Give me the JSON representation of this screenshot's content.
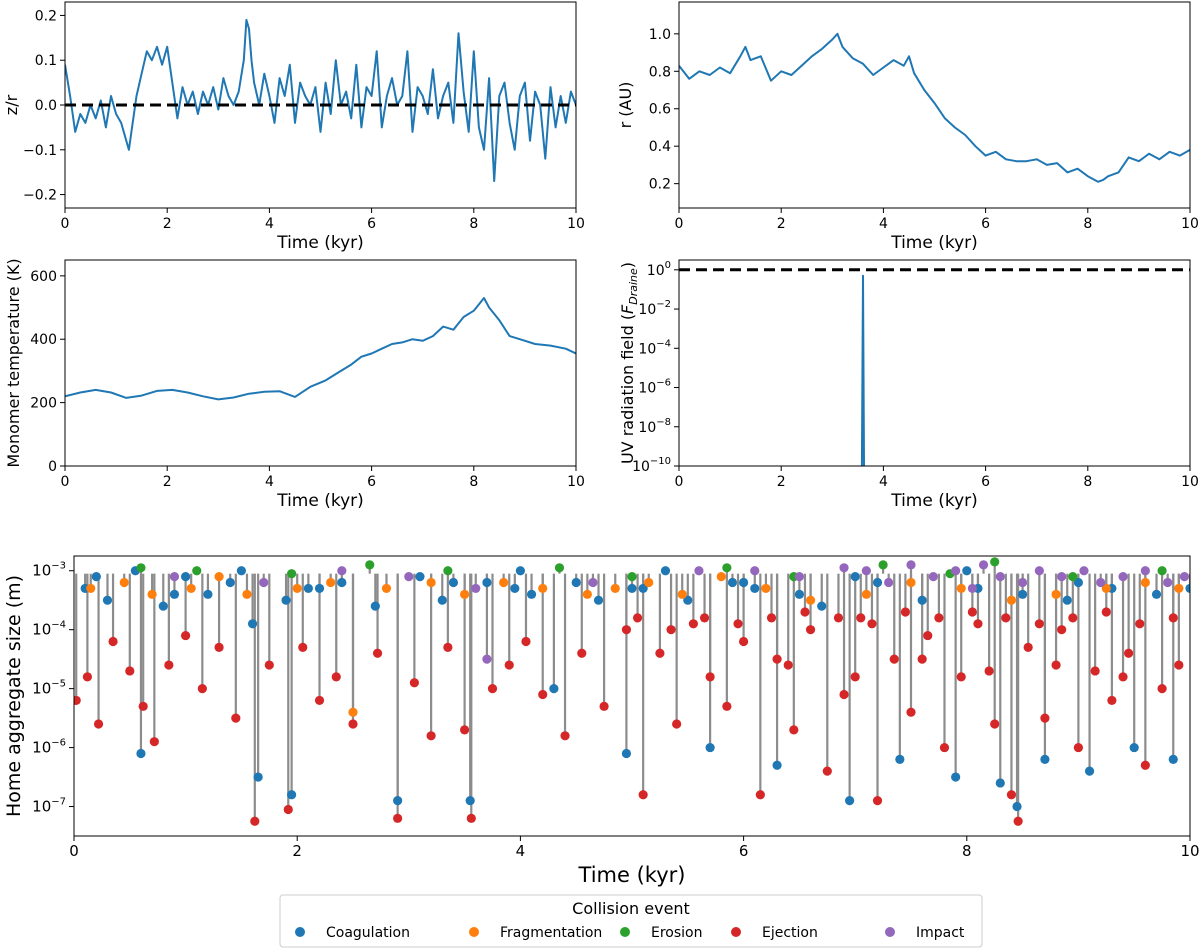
{
  "colors": {
    "line": "#1f77b4",
    "dashed": "#000000",
    "stem": "#8c8c8c",
    "Coagulation": "#1f77b4",
    "Fragmentation": "#ff7f0e",
    "Erosion": "#2ca02c",
    "Ejection": "#d62728",
    "Impact": "#9467bd"
  },
  "chart_data": [
    {
      "id": "zr",
      "type": "line",
      "title": "",
      "xlabel": "Time (kyr)",
      "ylabel": "z/r",
      "xlim": [
        0,
        10
      ],
      "ylim": [
        -0.23,
        0.23
      ],
      "xticks": [
        0,
        2,
        4,
        6,
        8,
        10
      ],
      "yticks": [
        -0.2,
        -0.1,
        0.0,
        0.1,
        0.2
      ],
      "ytick_labels": [
        "−0.2",
        "−0.1",
        "0.0",
        "0.1",
        "0.2"
      ],
      "hline": 0.0,
      "x": [
        0,
        0.1,
        0.2,
        0.3,
        0.4,
        0.5,
        0.6,
        0.7,
        0.8,
        0.9,
        1.0,
        1.1,
        1.2,
        1.25,
        1.3,
        1.4,
        1.5,
        1.6,
        1.7,
        1.8,
        1.9,
        2.0,
        2.1,
        2.2,
        2.3,
        2.4,
        2.5,
        2.6,
        2.7,
        2.8,
        2.9,
        3.0,
        3.1,
        3.2,
        3.3,
        3.4,
        3.5,
        3.55,
        3.6,
        3.65,
        3.7,
        3.8,
        3.9,
        4.0,
        4.1,
        4.2,
        4.3,
        4.4,
        4.5,
        4.6,
        4.7,
        4.8,
        4.9,
        5.0,
        5.1,
        5.2,
        5.3,
        5.4,
        5.5,
        5.6,
        5.7,
        5.8,
        5.9,
        6.0,
        6.1,
        6.2,
        6.3,
        6.4,
        6.5,
        6.6,
        6.7,
        6.8,
        6.9,
        7.0,
        7.1,
        7.2,
        7.3,
        7.4,
        7.5,
        7.6,
        7.7,
        7.8,
        7.9,
        8.0,
        8.1,
        8.2,
        8.3,
        8.4,
        8.5,
        8.6,
        8.7,
        8.8,
        8.9,
        9.0,
        9.1,
        9.2,
        9.3,
        9.4,
        9.5,
        9.6,
        9.7,
        9.8,
        9.9,
        10.0
      ],
      "values": [
        0.09,
        0.02,
        -0.06,
        -0.02,
        -0.04,
        0.0,
        -0.03,
        0.01,
        -0.05,
        0.02,
        -0.02,
        -0.04,
        -0.08,
        -0.1,
        -0.06,
        0.02,
        0.07,
        0.12,
        0.1,
        0.13,
        0.09,
        0.13,
        0.05,
        -0.03,
        0.04,
        0.0,
        0.03,
        -0.02,
        0.03,
        0.0,
        0.04,
        -0.01,
        0.06,
        0.02,
        0.0,
        0.03,
        0.1,
        0.19,
        0.17,
        0.1,
        0.05,
        0.0,
        0.07,
        0.02,
        -0.04,
        0.06,
        0.02,
        0.09,
        -0.04,
        0.05,
        0.02,
        0.0,
        0.04,
        -0.06,
        0.05,
        -0.02,
        0.1,
        0.0,
        0.03,
        -0.03,
        0.09,
        -0.05,
        0.04,
        0.02,
        0.12,
        -0.05,
        0.02,
        0.06,
        0.0,
        0.02,
        0.12,
        -0.06,
        0.04,
        0.02,
        -0.02,
        0.08,
        -0.03,
        0.02,
        0.05,
        -0.04,
        0.16,
        0.03,
        -0.06,
        0.12,
        -0.05,
        -0.1,
        0.06,
        -0.17,
        0.02,
        0.05,
        -0.04,
        -0.1,
        0.02,
        0.05,
        -0.08,
        0.03,
        0.0,
        -0.12,
        0.04,
        -0.05,
        0.02,
        -0.04,
        0.03,
        0.0
      ]
    },
    {
      "id": "r",
      "type": "line",
      "title": "",
      "xlabel": "Time (kyr)",
      "ylabel": "r (AU)",
      "xlim": [
        0,
        10
      ],
      "ylim": [
        0.07,
        1.17
      ],
      "xticks": [
        0,
        2,
        4,
        6,
        8,
        10
      ],
      "yticks": [
        0.2,
        0.4,
        0.6,
        0.8,
        1.0
      ],
      "ytick_labels": [
        "0.2",
        "0.4",
        "0.6",
        "0.8",
        "1.0"
      ],
      "x": [
        0,
        0.2,
        0.4,
        0.6,
        0.8,
        1.0,
        1.2,
        1.3,
        1.4,
        1.6,
        1.8,
        2.0,
        2.2,
        2.4,
        2.6,
        2.8,
        3.0,
        3.1,
        3.2,
        3.4,
        3.6,
        3.8,
        4.0,
        4.2,
        4.4,
        4.5,
        4.6,
        4.8,
        5.0,
        5.2,
        5.4,
        5.6,
        5.8,
        6.0,
        6.2,
        6.4,
        6.6,
        6.8,
        7.0,
        7.2,
        7.4,
        7.6,
        7.8,
        8.0,
        8.2,
        8.3,
        8.4,
        8.6,
        8.8,
        9.0,
        9.2,
        9.4,
        9.6,
        9.8,
        10.0
      ],
      "values": [
        0.83,
        0.76,
        0.8,
        0.78,
        0.82,
        0.79,
        0.88,
        0.93,
        0.86,
        0.88,
        0.75,
        0.8,
        0.78,
        0.83,
        0.88,
        0.92,
        0.97,
        1.0,
        0.93,
        0.87,
        0.84,
        0.78,
        0.82,
        0.86,
        0.83,
        0.88,
        0.79,
        0.7,
        0.63,
        0.55,
        0.5,
        0.46,
        0.4,
        0.35,
        0.37,
        0.33,
        0.32,
        0.32,
        0.33,
        0.3,
        0.31,
        0.26,
        0.28,
        0.24,
        0.21,
        0.22,
        0.24,
        0.26,
        0.34,
        0.32,
        0.36,
        0.33,
        0.37,
        0.35,
        0.38
      ]
    },
    {
      "id": "temp",
      "type": "line",
      "title": "",
      "xlabel": "Time (kyr)",
      "ylabel": "Monomer temperature (K)",
      "xlim": [
        0,
        10
      ],
      "ylim": [
        0,
        650
      ],
      "xticks": [
        0,
        2,
        4,
        6,
        8,
        10
      ],
      "yticks": [
        0,
        200,
        400,
        600
      ],
      "ytick_labels": [
        "0",
        "200",
        "400",
        "600"
      ],
      "x": [
        0,
        0.3,
        0.6,
        0.9,
        1.2,
        1.5,
        1.8,
        2.1,
        2.4,
        2.7,
        3.0,
        3.3,
        3.6,
        3.9,
        4.2,
        4.5,
        4.8,
        5.1,
        5.4,
        5.6,
        5.8,
        6.0,
        6.2,
        6.4,
        6.6,
        6.8,
        7.0,
        7.2,
        7.4,
        7.6,
        7.8,
        8.0,
        8.2,
        8.3,
        8.5,
        8.7,
        8.9,
        9.2,
        9.5,
        9.8,
        10.0
      ],
      "values": [
        220,
        232,
        240,
        232,
        215,
        222,
        237,
        240,
        232,
        220,
        210,
        216,
        228,
        234,
        236,
        218,
        250,
        270,
        300,
        320,
        345,
        355,
        370,
        385,
        390,
        400,
        395,
        410,
        440,
        430,
        470,
        490,
        530,
        500,
        460,
        410,
        400,
        385,
        380,
        370,
        355
      ]
    },
    {
      "id": "uv",
      "type": "line",
      "title": "",
      "xlabel": "Time (kyr)",
      "ylabel": "UV radiation field (F_Draine)",
      "yscale": "log",
      "xlim": [
        0,
        10
      ],
      "ylim_log10": [
        -10,
        0.5
      ],
      "xticks": [
        0,
        2,
        4,
        6,
        8,
        10
      ],
      "yticks_log10": [
        -10,
        -8,
        -6,
        -4,
        -2,
        0
      ],
      "hline": 1.0,
      "x": [
        3.58,
        3.6,
        3.62,
        3.64
      ],
      "values_log10": [
        -10,
        -0.3,
        -10,
        -10
      ]
    },
    {
      "id": "size",
      "type": "scatter",
      "title": "",
      "xlabel": "Time (kyr)",
      "ylabel": "Home aggregate size (m)",
      "yscale": "log",
      "xlim": [
        0,
        10
      ],
      "ylim_log10": [
        -7.5,
        -2.75
      ],
      "xticks": [
        0,
        2,
        4,
        6,
        8,
        10
      ],
      "yticks_log10": [
        -7,
        -6,
        -5,
        -4,
        -3
      ],
      "legend": {
        "title": "Collision event",
        "placement": "bottom-center",
        "entries": [
          "Coagulation",
          "Fragmentation",
          "Erosion",
          "Ejection",
          "Impact"
        ]
      },
      "series": [
        {
          "name": "Coagulation",
          "x": [
            0.1,
            0.3,
            0.55,
            0.6,
            0.8,
            1.0,
            1.2,
            1.4,
            1.6,
            1.65,
            1.9,
            1.95,
            2.2,
            2.4,
            2.7,
            2.9,
            3.1,
            3.3,
            3.55,
            3.7,
            3.95,
            4.1,
            4.3,
            4.5,
            4.7,
            4.95,
            5.1,
            5.3,
            5.5,
            5.7,
            5.9,
            6.1,
            6.3,
            6.5,
            6.7,
            6.95,
            7.2,
            7.4,
            7.6,
            7.9,
            8.1,
            8.3,
            8.45,
            8.5,
            8.7,
            8.9,
            9.1,
            9.3,
            9.5,
            9.7,
            9.85,
            10.0,
            0.2,
            0.9,
            1.5,
            2.1,
            3.4,
            4.0,
            5.0,
            6.0,
            7.0,
            8.0,
            9.0
          ],
          "values_log10": [
            -3.3,
            -3.5,
            -3.0,
            -6.1,
            -3.6,
            -3.1,
            -3.4,
            -3.2,
            -3.9,
            -6.5,
            -3.5,
            -6.8,
            -3.3,
            -3.2,
            -3.6,
            -6.9,
            -3.1,
            -3.5,
            -6.9,
            -3.2,
            -3.3,
            -3.4,
            -5.0,
            -3.2,
            -3.5,
            -6.1,
            -3.3,
            -3.0,
            -3.5,
            -6.0,
            -3.2,
            -3.3,
            -6.3,
            -3.4,
            -3.6,
            -6.9,
            -3.2,
            -6.2,
            -3.5,
            -6.5,
            -3.3,
            -6.6,
            -7.0,
            -3.4,
            -6.2,
            -3.5,
            -6.4,
            -3.3,
            -6.0,
            -3.4,
            -6.2,
            -3.3,
            -3.1,
            -3.4,
            -3.0,
            -3.3,
            -3.2,
            -3.0,
            -3.3,
            -3.2,
            -3.1,
            -3.0,
            -3.2
          ]
        },
        {
          "name": "Fragmentation",
          "x": [
            0.15,
            0.45,
            0.7,
            1.05,
            1.3,
            1.55,
            2.0,
            2.3,
            2.5,
            2.8,
            3.2,
            3.5,
            3.85,
            4.2,
            4.6,
            4.85,
            5.15,
            5.45,
            5.8,
            6.2,
            6.6,
            7.1,
            7.5,
            7.95,
            8.4,
            8.8,
            9.25,
            9.6,
            9.9
          ],
          "values_log10": [
            -3.3,
            -3.2,
            -3.4,
            -3.3,
            -3.1,
            -3.4,
            -3.3,
            -3.2,
            -5.4,
            -3.3,
            -3.2,
            -3.4,
            -3.2,
            -3.3,
            -3.4,
            -3.3,
            -3.2,
            -3.4,
            -3.1,
            -3.3,
            -3.5,
            -3.4,
            -3.2,
            -3.3,
            -3.5,
            -3.4,
            -3.3,
            -3.2,
            -3.3
          ]
        },
        {
          "name": "Erosion",
          "x": [
            0.6,
            1.1,
            1.95,
            2.65,
            3.35,
            4.35,
            5.0,
            5.85,
            6.45,
            7.25,
            7.85,
            8.25,
            8.95,
            9.75
          ],
          "values_log10": [
            -2.95,
            -3.0,
            -3.05,
            -2.9,
            -3.0,
            -2.95,
            -3.1,
            -2.95,
            -3.1,
            -2.9,
            -3.05,
            -2.85,
            -3.1,
            -3.0
          ]
        },
        {
          "name": "Ejection",
          "x": [
            0.02,
            0.12,
            0.22,
            0.35,
            0.5,
            0.62,
            0.72,
            0.85,
            1.0,
            1.15,
            1.3,
            1.45,
            1.62,
            1.75,
            1.92,
            2.05,
            2.2,
            2.35,
            2.5,
            2.72,
            2.9,
            3.05,
            3.2,
            3.35,
            3.5,
            3.56,
            3.75,
            3.9,
            4.05,
            4.2,
            4.4,
            4.55,
            4.75,
            4.95,
            5.1,
            5.25,
            5.4,
            5.55,
            5.7,
            5.85,
            6.0,
            6.15,
            6.3,
            6.45,
            6.6,
            6.75,
            6.9,
            7.05,
            7.2,
            7.35,
            7.5,
            7.65,
            7.8,
            7.95,
            8.1,
            8.25,
            8.4,
            8.46,
            8.55,
            8.7,
            8.85,
            9.0,
            9.15,
            9.3,
            9.45,
            9.6,
            9.75,
            9.9,
            5.05,
            5.35,
            5.65,
            5.95,
            6.25,
            6.55,
            6.85,
            7.15,
            7.45,
            7.75,
            8.05,
            8.35,
            8.65,
            8.95,
            9.25,
            9.55,
            9.85,
            6.4,
            7.0,
            7.6,
            8.2,
            8.8,
            9.4
          ],
          "values_log10": [
            -5.2,
            -4.8,
            -5.6,
            -4.2,
            -4.7,
            -5.3,
            -5.9,
            -4.6,
            -4.1,
            -5.0,
            -4.3,
            -5.5,
            -7.25,
            -4.6,
            -7.05,
            -4.3,
            -5.2,
            -4.8,
            -5.6,
            -4.4,
            -7.2,
            -4.9,
            -5.8,
            -4.3,
            -5.7,
            -7.2,
            -5.0,
            -4.6,
            -4.2,
            -5.1,
            -5.8,
            -4.4,
            -5.3,
            -4.0,
            -6.8,
            -4.4,
            -5.6,
            -3.9,
            -4.8,
            -5.3,
            -4.2,
            -6.8,
            -4.5,
            -5.7,
            -4.0,
            -6.4,
            -5.1,
            -3.8,
            -6.9,
            -4.5,
            -5.4,
            -4.1,
            -6.0,
            -4.8,
            -3.9,
            -5.6,
            -6.8,
            -7.25,
            -4.3,
            -5.5,
            -4.0,
            -6.0,
            -4.7,
            -5.2,
            -4.4,
            -6.3,
            -5.0,
            -4.6,
            -3.8,
            -4.0,
            -3.8,
            -3.9,
            -3.8,
            -3.7,
            -3.8,
            -3.9,
            -3.7,
            -3.8,
            -3.7,
            -3.8,
            -3.9,
            -3.8,
            -3.7,
            -3.9,
            -3.8,
            -4.6,
            -4.8,
            -4.5,
            -4.7,
            -4.6,
            -4.8
          ]
        },
        {
          "name": "Impact",
          "x": [
            0.9,
            1.7,
            2.4,
            3.0,
            3.6,
            4.65,
            5.6,
            6.1,
            6.5,
            6.9,
            7.1,
            7.3,
            7.5,
            7.7,
            7.9,
            8.05,
            8.15,
            8.3,
            8.5,
            8.65,
            8.85,
            9.05,
            9.2,
            9.4,
            9.6,
            9.8,
            9.95,
            3.7
          ],
          "values_log10": [
            -3.1,
            -3.2,
            -3.0,
            -3.1,
            -3.3,
            -3.2,
            -3.0,
            -3.0,
            -3.1,
            -2.95,
            -3.0,
            -3.2,
            -2.9,
            -3.1,
            -3.0,
            -3.3,
            -2.9,
            -3.1,
            -3.2,
            -3.0,
            -3.1,
            -3.0,
            -3.2,
            -3.1,
            -3.0,
            -3.2,
            -3.1,
            -4.5
          ]
        }
      ]
    }
  ]
}
